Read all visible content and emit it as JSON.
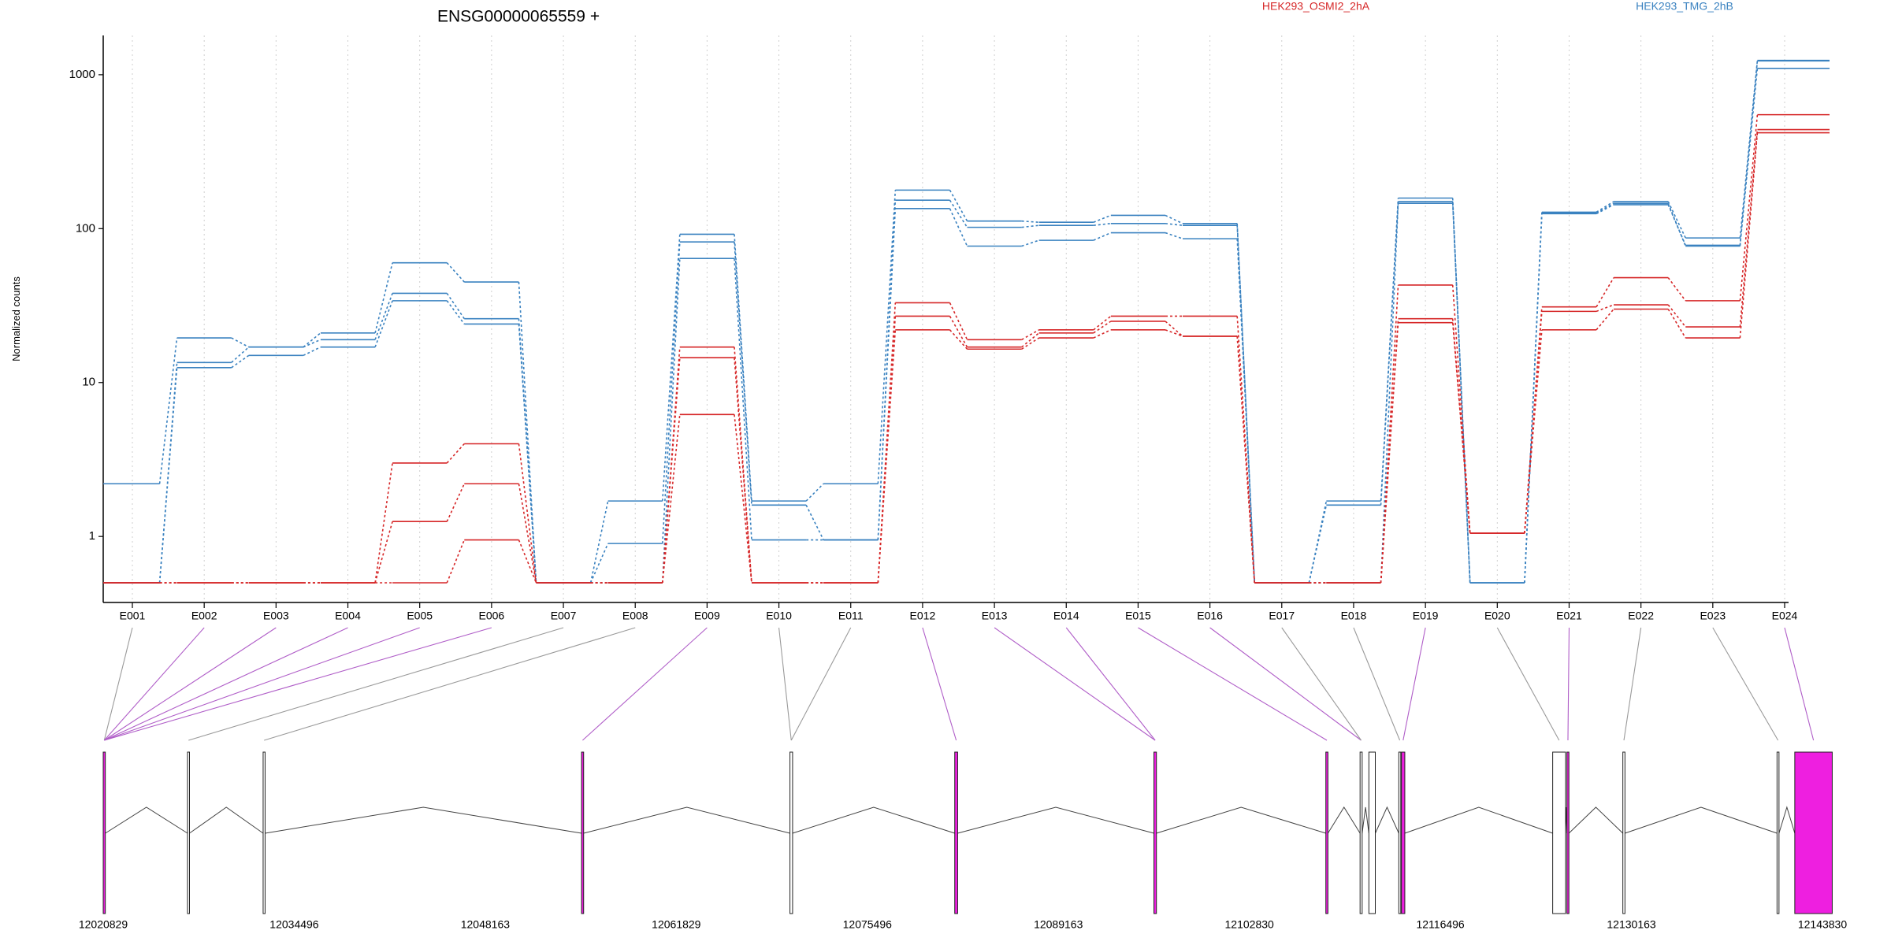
{
  "chart_data": {
    "type": "line",
    "title": "ENSG00000065559 +",
    "ylabel": "Normalized counts",
    "xlabel": "",
    "y_scale": "log",
    "ylim": [
      0.5,
      1600
    ],
    "yticks": [
      1,
      10,
      100,
      1000
    ],
    "ytick_labels": [
      "1",
      "10",
      "100",
      "1000"
    ],
    "categories": [
      "E001",
      "E002",
      "E003",
      "E004",
      "E005",
      "E006",
      "E007",
      "E008",
      "E009",
      "E010",
      "E011",
      "E012",
      "E013",
      "E014",
      "E015",
      "E016",
      "E017",
      "E018",
      "E019",
      "E020",
      "E021",
      "E022",
      "E023",
      "E024"
    ],
    "grid": "vertical dotted",
    "legend": [
      {
        "label": "HEK293_OSMI2_2hA",
        "color": "#d62728"
      },
      {
        "label": "HEK293_TMG_2hB",
        "color": "#3a82c0"
      }
    ],
    "series": [
      {
        "group": "HEK293_TMG_2hB",
        "color": "#3a82c0",
        "values": [
          2.2,
          19.5,
          17,
          21,
          60,
          45,
          0.5,
          1.7,
          92,
          1.7,
          2.2,
          178,
          112,
          110,
          122,
          108,
          0.5,
          1.7,
          158,
          0.5,
          128,
          150,
          87,
          1240
        ]
      },
      {
        "group": "HEK293_TMG_2hB",
        "color": "#3a82c0",
        "values": [
          0.5,
          13.5,
          17,
          19,
          38,
          26,
          0.5,
          0.9,
          82,
          1.6,
          0.95,
          153,
          102,
          105,
          108,
          105,
          0.5,
          1.6,
          150,
          0.5,
          126,
          146,
          77,
          1230
        ]
      },
      {
        "group": "HEK293_TMG_2hB",
        "color": "#3a82c0",
        "values": [
          0.5,
          12.5,
          15,
          17,
          34,
          24,
          0.5,
          0.5,
          64,
          0.95,
          0.95,
          135,
          77,
          84,
          94,
          86,
          0.5,
          0.5,
          146,
          0.5,
          125,
          143,
          78,
          1100
        ]
      },
      {
        "group": "HEK293_OSMI2_2hA",
        "color": "#d62728",
        "values": [
          0.5,
          0.5,
          0.5,
          0.5,
          3.0,
          4.0,
          0.5,
          0.5,
          17,
          0.5,
          0.5,
          33,
          19,
          22,
          27,
          27,
          0.5,
          0.5,
          43,
          1.05,
          31,
          48,
          34,
          550
        ]
      },
      {
        "group": "HEK293_OSMI2_2hA",
        "color": "#d62728",
        "values": [
          0.5,
          0.5,
          0.5,
          0.5,
          1.25,
          2.2,
          0.5,
          0.5,
          14.5,
          0.5,
          0.5,
          27,
          17,
          21,
          25,
          20,
          0.5,
          0.5,
          26,
          1.05,
          29,
          32,
          23,
          440
        ]
      },
      {
        "group": "HEK293_OSMI2_2hA",
        "color": "#d62728",
        "values": [
          0.5,
          0.5,
          0.5,
          0.5,
          0.5,
          0.95,
          0.5,
          0.5,
          6.2,
          0.5,
          0.5,
          22,
          16.5,
          19.5,
          22,
          20,
          0.5,
          0.5,
          24.5,
          1.05,
          22,
          30,
          19.5,
          420
        ]
      }
    ],
    "gene_model": {
      "genomic_ticks": [
        "12020829",
        "12034496",
        "12048163",
        "12061829",
        "12075496",
        "12089163",
        "12102830",
        "12116496",
        "12130163",
        "12143830"
      ],
      "genomic_range": [
        12020829,
        12143830
      ],
      "exon_starts": [
        12020829,
        12026860,
        12032270,
        12055050,
        12069960,
        12081750,
        12096000,
        12108300,
        12110750,
        12111380,
        12113520,
        12113710,
        12124530,
        12125550,
        12129550,
        12140580,
        12141850
      ],
      "exon_ends": [
        12020980,
        12026960,
        12032370,
        12055200,
        12070150,
        12081960,
        12096180,
        12108450,
        12110900,
        12111840,
        12113560,
        12113950,
        12125450,
        12125630,
        12129700,
        12140680,
        12144530
      ],
      "exon_highlight": [
        true,
        false,
        false,
        true,
        false,
        true,
        true,
        true,
        false,
        false,
        false,
        true,
        false,
        true,
        false,
        false,
        true
      ],
      "highlight_color": "#ee1fe0",
      "bin_links": [
        {
          "bin": "E001",
          "target": 0,
          "highlight": false
        },
        {
          "bin": "E002",
          "target": 0,
          "highlight": true
        },
        {
          "bin": "E003",
          "target": 0,
          "highlight": true
        },
        {
          "bin": "E004",
          "target": 0,
          "highlight": true
        },
        {
          "bin": "E005",
          "target": 0,
          "highlight": true
        },
        {
          "bin": "E006",
          "target": 0,
          "highlight": true
        },
        {
          "bin": "E007",
          "target": 1,
          "highlight": false
        },
        {
          "bin": "E008",
          "target": 2,
          "highlight": false
        },
        {
          "bin": "E009",
          "target": 3,
          "highlight": true
        },
        {
          "bin": "E010",
          "target": 4,
          "highlight": false
        },
        {
          "bin": "E011",
          "target": 4,
          "highlight": false
        },
        {
          "bin": "E012",
          "target": 5,
          "highlight": true
        },
        {
          "bin": "E013",
          "target": 6,
          "highlight": true
        },
        {
          "bin": "E014",
          "target": 6,
          "highlight": true
        },
        {
          "bin": "E015",
          "target": 7,
          "highlight": true
        },
        {
          "bin": "E016",
          "target": 8,
          "highlight": true
        },
        {
          "bin": "E017",
          "target": 8,
          "highlight": false
        },
        {
          "bin": "E018",
          "target": 10,
          "highlight": false
        },
        {
          "bin": "E019",
          "target": 11,
          "highlight": true
        },
        {
          "bin": "E020",
          "target": 12,
          "highlight": false
        },
        {
          "bin": "E021",
          "target": 13,
          "highlight": true
        },
        {
          "bin": "E022",
          "target": 14,
          "highlight": false
        },
        {
          "bin": "E023",
          "target": 15,
          "highlight": false
        },
        {
          "bin": "E024",
          "target": 16,
          "highlight": true
        }
      ]
    }
  }
}
